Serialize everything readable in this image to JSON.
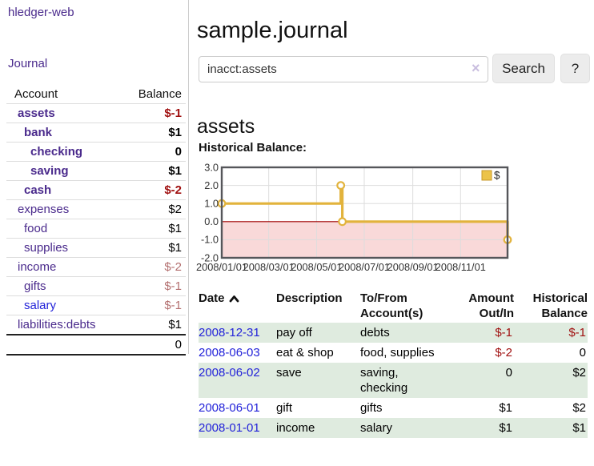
{
  "colors": {
    "link_purple": "#4a2a8c",
    "link_blue": "#2323d9",
    "negative_strong": "#a01010",
    "negative_muted": "#b36f6f",
    "row_stripe": "#dfebdf"
  },
  "sidebar": {
    "brand": "hledger-web",
    "nav": {
      "journal": "Journal"
    },
    "headers": [
      "Account",
      "Balance"
    ],
    "accounts": [
      {
        "name": "assets",
        "balance": "$-1",
        "indent": 0,
        "bold": true,
        "balance_class": "neg-strong"
      },
      {
        "name": "bank",
        "balance": "$1",
        "indent": 1,
        "bold": true
      },
      {
        "name": "checking",
        "balance": "0",
        "indent": 2,
        "bold": true
      },
      {
        "name": "saving",
        "balance": "$1",
        "indent": 2,
        "bold": true
      },
      {
        "name": "cash",
        "balance": "$-2",
        "indent": 1,
        "bold": true,
        "balance_class": "neg-strong"
      },
      {
        "name": "expenses",
        "balance": "$2",
        "indent": 0
      },
      {
        "name": "food",
        "balance": "$1",
        "indent": 1
      },
      {
        "name": "supplies",
        "balance": "$1",
        "indent": 1
      },
      {
        "name": "income",
        "balance": "$-2",
        "indent": 0,
        "balance_class": "neg-muted"
      },
      {
        "name": "gifts",
        "balance": "$-1",
        "indent": 1,
        "balance_class": "neg-muted"
      },
      {
        "name": "salary",
        "balance": "$-1",
        "indent": 1,
        "balance_class": "neg-muted",
        "link_class": "blue"
      },
      {
        "name": "liabilities:debts",
        "balance": "$1",
        "indent": 0
      }
    ],
    "total": "0"
  },
  "main": {
    "title": "sample.journal",
    "search": {
      "value": "inacct:assets",
      "clear_icon": "×",
      "button_label": "Search",
      "help_label": "?"
    },
    "account_heading": "assets",
    "section_label": "Historical Balance:"
  },
  "chart_data": {
    "type": "line",
    "step": true,
    "title": "Historical Balance",
    "legend": {
      "label": "$",
      "position": "top-right"
    },
    "x_range": [
      "2008-01-01",
      "2008-12-31"
    ],
    "x_ticks": [
      {
        "date": "2008-01-01",
        "label": "2008/01/01"
      },
      {
        "date": "2008-03-01",
        "label": "2008/03/01"
      },
      {
        "date": "2008-05-01",
        "label": "2008/05/01"
      },
      {
        "date": "2008-07-01",
        "label": "2008/07/01"
      },
      {
        "date": "2008-09-01",
        "label": "2008/09/01"
      },
      {
        "date": "2008-11-01",
        "label": "2008/11/01"
      }
    ],
    "y_ticks": [
      3.0,
      2.0,
      1.0,
      0.0,
      -1.0,
      -2.0
    ],
    "ylim": [
      -2.0,
      3.0
    ],
    "series": [
      {
        "name": "$",
        "points": [
          {
            "date": "2008-01-01",
            "value": 1
          },
          {
            "date": "2008-06-01",
            "value": 2
          },
          {
            "date": "2008-06-03",
            "value": 0
          },
          {
            "date": "2008-12-31",
            "value": -1
          }
        ]
      }
    ],
    "colors": {
      "line": "#e2b33c",
      "marker_fill": "#ffffff",
      "legend_fill": "#ecc34a",
      "legend_border": "#c9992b",
      "negative_fill": "#f9d9d9",
      "zero_line": "#a00000",
      "grid": "#dddddd",
      "border": "#55565a",
      "axis_text": "#333333"
    }
  },
  "register": {
    "headers": [
      {
        "line1": "Date",
        "line2": ""
      },
      {
        "line1": "Description",
        "line2": ""
      },
      {
        "line1": "To/From",
        "line2": "Account(s)"
      },
      {
        "line1": "Amount",
        "line2": "Out/In"
      },
      {
        "line1": "Historical",
        "line2": "Balance"
      }
    ],
    "sort_direction": "ascending",
    "rows": [
      {
        "date": "2008-12-31",
        "description": "pay off",
        "accounts": "debts",
        "amount": "$-1",
        "balance": "$-1",
        "amount_class": "neg",
        "balance_class": "neg",
        "stripe": true
      },
      {
        "date": "2008-06-03",
        "description": "eat & shop",
        "accounts": "food, supplies",
        "amount": "$-2",
        "balance": "0",
        "amount_class": "neg",
        "stripe": false
      },
      {
        "date": "2008-06-02",
        "description": "save",
        "accounts": "saving, checking",
        "amount": "0",
        "balance": "$2",
        "stripe": true
      },
      {
        "date": "2008-06-01",
        "description": "gift",
        "accounts": "gifts",
        "amount": "$1",
        "balance": "$2",
        "stripe": false
      },
      {
        "date": "2008-01-01",
        "description": "income",
        "accounts": "salary",
        "amount": "$1",
        "balance": "$1",
        "stripe": true
      }
    ]
  }
}
